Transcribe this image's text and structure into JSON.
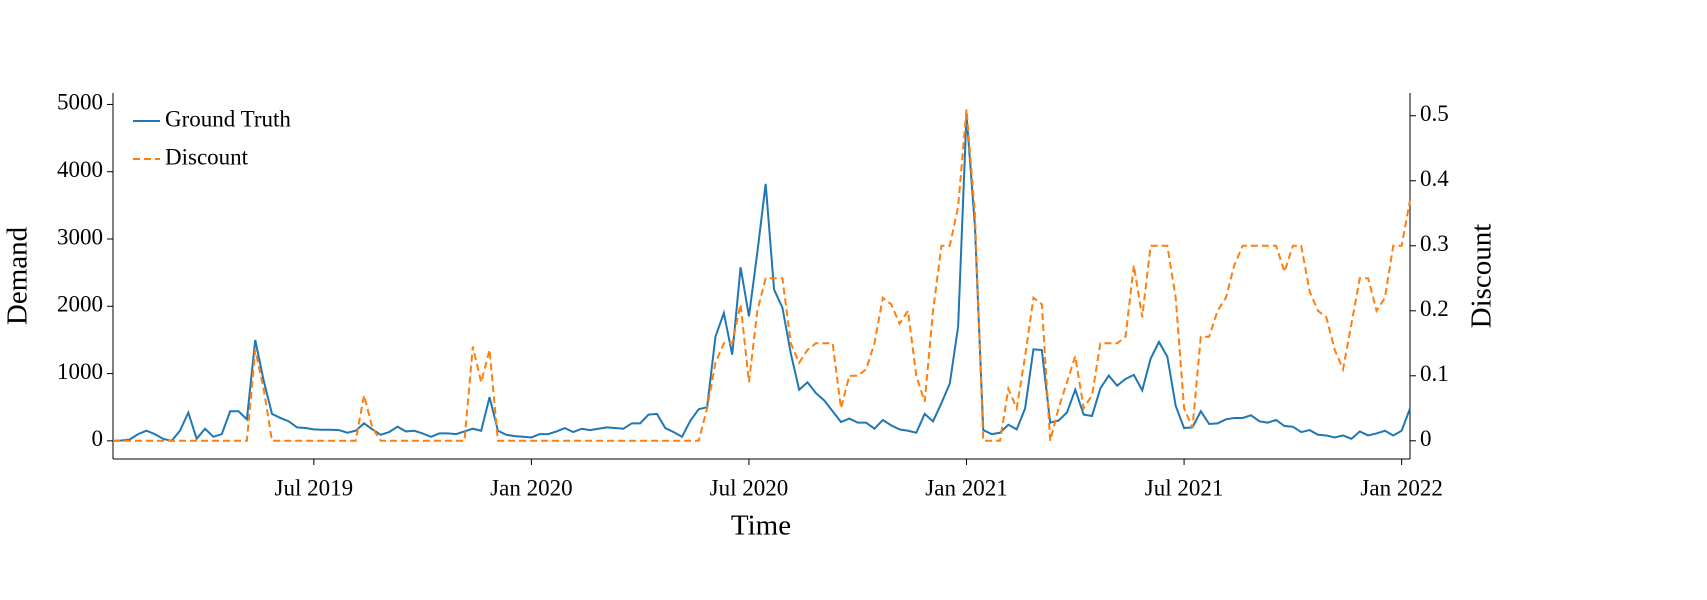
{
  "chart_data": {
    "type": "line",
    "xlabel": "Time",
    "ylabel": "Demand",
    "y2label": "Discount",
    "categories": [
      null,
      null,
      null,
      null,
      null,
      null,
      null,
      null,
      null,
      null,
      null,
      null,
      null,
      null,
      null,
      null,
      null,
      null,
      null,
      null,
      null,
      null,
      null,
      null,
      "Jul 2019",
      null,
      null,
      null,
      null,
      null,
      null,
      null,
      null,
      null,
      null,
      null,
      null,
      null,
      null,
      null,
      null,
      null,
      null,
      null,
      null,
      null,
      null,
      null,
      null,
      null,
      "Jan 2020",
      null,
      null,
      null,
      null,
      null,
      null,
      null,
      null,
      null,
      null,
      null,
      null,
      null,
      null,
      null,
      null,
      null,
      null,
      null,
      null,
      null,
      null,
      null,
      null,
      null,
      "Jul 2020",
      null,
      null,
      null,
      null,
      null,
      null,
      null,
      null,
      null,
      null,
      null,
      null,
      null,
      null,
      null,
      null,
      null,
      null,
      null,
      null,
      null,
      null,
      null,
      null,
      null,
      "Jan 2021",
      null,
      null,
      null,
      null,
      null,
      null,
      null,
      null,
      null,
      null,
      null,
      null,
      null,
      null,
      null,
      null,
      null,
      null,
      null,
      null,
      null,
      null,
      null,
      null,
      null,
      "Jul 2021",
      null,
      null,
      null,
      null,
      null,
      null,
      null,
      null,
      null,
      null,
      null,
      null,
      null,
      null,
      null,
      null,
      null,
      null,
      null,
      null,
      null,
      null,
      null,
      null,
      null,
      "Jan 2022",
      null
    ],
    "series": [
      {
        "name": "Ground Truth",
        "color": "#1f77b4",
        "style": "solid",
        "values": [
          0,
          5,
          20,
          100,
          150,
          100,
          30,
          0,
          150,
          420,
          30,
          180,
          60,
          100,
          440,
          440,
          320,
          1500,
          900,
          400,
          340,
          290,
          200,
          190,
          170,
          165,
          165,
          160,
          120,
          150,
          260,
          170,
          90,
          130,
          210,
          140,
          150,
          110,
          60,
          110,
          110,
          100,
          140,
          180,
          150,
          650,
          150,
          90,
          70,
          60,
          50,
          100,
          100,
          140,
          190,
          130,
          180,
          160,
          180,
          200,
          190,
          180,
          260,
          260,
          390,
          400,
          190,
          130,
          60,
          300,
          470,
          500,
          1550,
          1900,
          1280,
          2580,
          1850,
          2800,
          3820,
          2250,
          1980,
          1300,
          760,
          870,
          710,
          600,
          440,
          280,
          330,
          270,
          270,
          180,
          310,
          230,
          170,
          150,
          120,
          400,
          290,
          560,
          850,
          1700,
          4850,
          3200,
          160,
          100,
          120,
          240,
          170,
          480,
          1360,
          1350,
          270,
          300,
          420,
          760,
          390,
          370,
          780,
          970,
          820,
          920,
          980,
          750,
          1220,
          1470,
          1250,
          520,
          190,
          200,
          440,
          250,
          260,
          320,
          340,
          340,
          380,
          290,
          270,
          310,
          220,
          210,
          130,
          160,
          90,
          80,
          50,
          80,
          30,
          140,
          80,
          110,
          150,
          80,
          150,
          480
        ]
      },
      {
        "name": "Discount",
        "color": "#ff7f0e",
        "style": "dashed",
        "axis": "y2",
        "values": [
          0,
          0,
          0,
          0,
          0,
          0,
          0,
          0,
          0,
          0,
          0,
          0,
          0,
          0,
          0,
          0,
          0,
          0.14,
          0.08,
          0,
          0,
          0,
          0,
          0,
          0,
          0,
          0,
          0,
          0,
          0,
          0.07,
          0.02,
          0,
          0,
          0,
          0,
          0,
          0,
          0,
          0,
          0,
          0,
          0,
          0.145,
          0.09,
          0.14,
          0,
          0,
          0,
          0,
          0,
          0,
          0,
          0,
          0,
          0,
          0,
          0,
          0,
          0,
          0,
          0,
          0,
          0,
          0,
          0,
          0,
          0,
          0,
          0,
          0,
          0.05,
          0.12,
          0.15,
          0.15,
          0.21,
          0.09,
          0.2,
          0.25,
          0.25,
          0.25,
          0.15,
          0.12,
          0.14,
          0.15,
          0.15,
          0.15,
          0.05,
          0.1,
          0.1,
          0.11,
          0.15,
          0.22,
          0.21,
          0.18,
          0.2,
          0.1,
          0.06,
          0.2,
          0.3,
          0.3,
          0.36,
          0.51,
          0.35,
          0,
          0,
          0,
          0.08,
          0.05,
          0.13,
          0.22,
          0.21,
          0,
          0.05,
          0.09,
          0.13,
          0.05,
          0.07,
          0.15,
          0.15,
          0.15,
          0.16,
          0.27,
          0.19,
          0.3,
          0.3,
          0.3,
          0.22,
          0.05,
          0.02,
          0.16,
          0.16,
          0.2,
          0.22,
          0.27,
          0.3,
          0.3,
          0.3,
          0.3,
          0.3,
          0.26,
          0.3,
          0.3,
          0.23,
          0.2,
          0.19,
          0.14,
          0.11,
          0.18,
          0.25,
          0.25,
          0.2,
          0.22,
          0.3,
          0.3,
          0.37
        ]
      }
    ],
    "ylim": [
      -270,
      5170
    ],
    "yticks": [
      0,
      1000,
      2000,
      3000,
      4000,
      5000
    ],
    "y2lim": [
      -0.028,
      0.535
    ],
    "y2ticks": [
      0,
      0.1,
      0.2,
      0.3,
      0.4,
      0.5
    ],
    "legend": "upper left",
    "grid": false
  }
}
